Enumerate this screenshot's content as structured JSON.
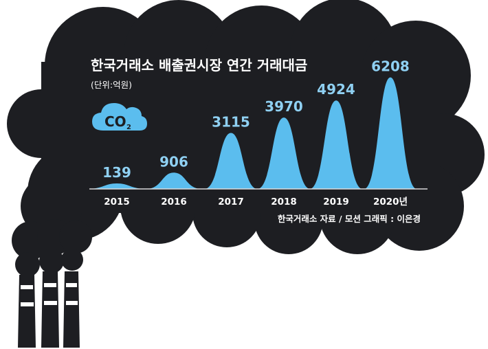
{
  "chart_data": {
    "type": "area",
    "title": "한국거래소 배출권시장 연간 거래대금",
    "unit_label": "(단위:억원)",
    "categories": [
      "2015",
      "2016",
      "2017",
      "2018",
      "2019",
      "2020년"
    ],
    "values": [
      139,
      906,
      3115,
      3970,
      4924,
      6208
    ],
    "ylim": [
      0,
      6500
    ],
    "grid": false,
    "source": "한국거래소 자료 / 모션 그래픽 : 이은경",
    "colors": {
      "peak": "#5bbdee",
      "label": "#8fd0f2",
      "background": "#1d1e22"
    }
  },
  "badge": {
    "icon": "co2-cloud-icon",
    "text": "CO",
    "subscript": "2"
  }
}
